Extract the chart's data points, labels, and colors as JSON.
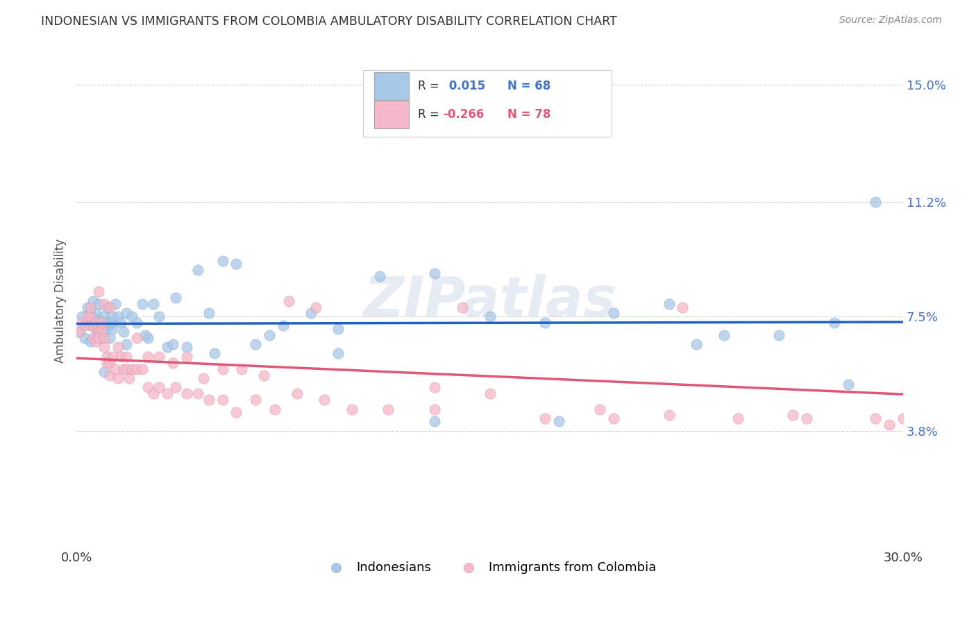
{
  "title": "INDONESIAN VS IMMIGRANTS FROM COLOMBIA AMBULATORY DISABILITY CORRELATION CHART",
  "source": "Source: ZipAtlas.com",
  "ylabel": "Ambulatory Disability",
  "watermark": "ZIPatlas",
  "xlim": [
    0.0,
    0.3
  ],
  "ylim": [
    0.0,
    0.16
  ],
  "ytick_labels_right": [
    "15.0%",
    "11.2%",
    "7.5%",
    "3.8%"
  ],
  "ytick_vals_right": [
    0.15,
    0.112,
    0.075,
    0.038
  ],
  "blue_R": 0.015,
  "blue_N": 68,
  "pink_R": -0.266,
  "pink_N": 78,
  "blue_color": "#a8c8e8",
  "pink_color": "#f4b8c8",
  "blue_line_color": "#2060c0",
  "pink_line_color": "#e05878",
  "grid_color": "#cccccc",
  "background_color": "#ffffff",
  "blue_x": [
    0.001,
    0.002,
    0.003,
    0.004,
    0.004,
    0.005,
    0.005,
    0.006,
    0.006,
    0.007,
    0.007,
    0.008,
    0.008,
    0.009,
    0.009,
    0.01,
    0.01,
    0.011,
    0.011,
    0.012,
    0.012,
    0.013,
    0.013,
    0.014,
    0.015,
    0.016,
    0.017,
    0.018,
    0.02,
    0.022,
    0.024,
    0.026,
    0.028,
    0.03,
    0.033,
    0.036,
    0.04,
    0.044,
    0.048,
    0.053,
    0.058,
    0.065,
    0.075,
    0.085,
    0.095,
    0.11,
    0.13,
    0.15,
    0.17,
    0.195,
    0.215,
    0.235,
    0.255,
    0.275,
    0.008,
    0.012,
    0.018,
    0.025,
    0.035,
    0.05,
    0.07,
    0.095,
    0.13,
    0.175,
    0.225,
    0.28,
    0.01,
    0.29
  ],
  "blue_y": [
    0.07,
    0.075,
    0.068,
    0.073,
    0.078,
    0.067,
    0.076,
    0.072,
    0.08,
    0.069,
    0.076,
    0.074,
    0.079,
    0.071,
    0.068,
    0.075,
    0.07,
    0.073,
    0.078,
    0.072,
    0.068,
    0.075,
    0.071,
    0.079,
    0.075,
    0.073,
    0.07,
    0.076,
    0.075,
    0.073,
    0.079,
    0.068,
    0.079,
    0.075,
    0.065,
    0.081,
    0.065,
    0.09,
    0.076,
    0.093,
    0.092,
    0.066,
    0.072,
    0.076,
    0.071,
    0.088,
    0.089,
    0.075,
    0.073,
    0.076,
    0.079,
    0.069,
    0.069,
    0.073,
    0.069,
    0.073,
    0.066,
    0.069,
    0.066,
    0.063,
    0.069,
    0.063,
    0.041,
    0.041,
    0.066,
    0.053,
    0.057,
    0.112
  ],
  "pink_x": [
    0.001,
    0.002,
    0.003,
    0.004,
    0.005,
    0.005,
    0.006,
    0.006,
    0.007,
    0.007,
    0.008,
    0.008,
    0.009,
    0.009,
    0.01,
    0.01,
    0.011,
    0.011,
    0.012,
    0.012,
    0.013,
    0.014,
    0.015,
    0.016,
    0.017,
    0.018,
    0.019,
    0.02,
    0.022,
    0.024,
    0.026,
    0.028,
    0.03,
    0.033,
    0.036,
    0.04,
    0.044,
    0.048,
    0.053,
    0.058,
    0.065,
    0.072,
    0.08,
    0.09,
    0.1,
    0.113,
    0.13,
    0.15,
    0.17,
    0.195,
    0.215,
    0.24,
    0.265,
    0.29,
    0.005,
    0.008,
    0.01,
    0.012,
    0.015,
    0.018,
    0.022,
    0.026,
    0.03,
    0.035,
    0.04,
    0.046,
    0.053,
    0.06,
    0.068,
    0.077,
    0.087,
    0.14,
    0.22,
    0.13,
    0.19,
    0.26,
    0.295,
    0.3
  ],
  "pink_y": [
    0.07,
    0.073,
    0.072,
    0.075,
    0.075,
    0.072,
    0.068,
    0.072,
    0.067,
    0.073,
    0.07,
    0.068,
    0.071,
    0.073,
    0.068,
    0.065,
    0.06,
    0.062,
    0.056,
    0.06,
    0.062,
    0.058,
    0.055,
    0.062,
    0.058,
    0.058,
    0.055,
    0.058,
    0.058,
    0.058,
    0.052,
    0.05,
    0.052,
    0.05,
    0.052,
    0.05,
    0.05,
    0.048,
    0.048,
    0.044,
    0.048,
    0.045,
    0.05,
    0.048,
    0.045,
    0.045,
    0.045,
    0.05,
    0.042,
    0.042,
    0.043,
    0.042,
    0.042,
    0.042,
    0.078,
    0.083,
    0.079,
    0.078,
    0.065,
    0.062,
    0.068,
    0.062,
    0.062,
    0.06,
    0.062,
    0.055,
    0.058,
    0.058,
    0.056,
    0.08,
    0.078,
    0.078,
    0.078,
    0.052,
    0.045,
    0.043,
    0.04,
    0.042
  ]
}
